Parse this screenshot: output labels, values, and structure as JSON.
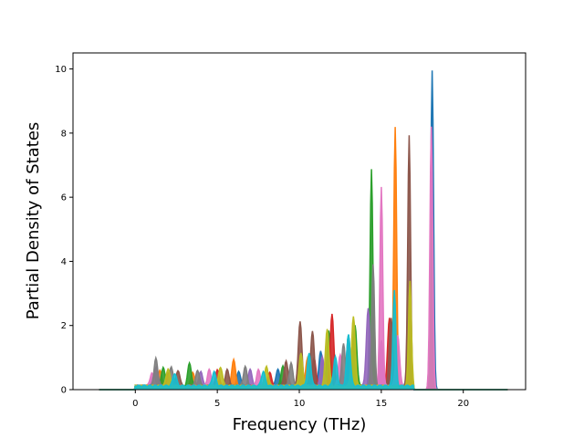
{
  "chart_data": {
    "type": "area",
    "xlabel": "Frequency (THz)",
    "ylabel": "Partial Density of States",
    "xlim": [
      -3.8,
      23.8
    ],
    "ylim": [
      0,
      10.5
    ],
    "xticks": [
      0,
      5,
      10,
      15,
      20
    ],
    "yticks": [
      0,
      2,
      4,
      6,
      8,
      10
    ],
    "grid": false,
    "legend": "none",
    "series": [
      {
        "color": "#1f77b4",
        "peaks": [
          [
            18.1,
            9.95
          ],
          [
            16.7,
            1.5
          ],
          [
            14.4,
            1.1
          ],
          [
            13.0,
            1.6
          ],
          [
            11.3,
            1.1
          ],
          [
            8.7,
            0.5
          ],
          [
            6.3,
            0.45
          ],
          [
            1.1,
            0.35
          ]
        ]
      },
      {
        "color": "#ff7f0e",
        "peaks": [
          [
            15.85,
            8.05
          ],
          [
            14.5,
            3.3
          ],
          [
            13.3,
            1.5
          ],
          [
            10.5,
            0.9
          ],
          [
            6.0,
            0.8
          ],
          [
            3.5,
            0.4
          ],
          [
            1.5,
            0.5
          ]
        ]
      },
      {
        "color": "#2ca02c",
        "peaks": [
          [
            14.4,
            6.75
          ],
          [
            18.05,
            5.35
          ],
          [
            13.4,
            1.9
          ],
          [
            11.8,
            1.7
          ],
          [
            9.0,
            0.6
          ],
          [
            3.3,
            0.7
          ],
          [
            1.7,
            0.6
          ]
        ]
      },
      {
        "color": "#d62728",
        "peaks": [
          [
            12.0,
            2.25
          ],
          [
            15.5,
            2.1
          ],
          [
            10.9,
            0.9
          ],
          [
            8.2,
            0.4
          ],
          [
            5.0,
            0.5
          ],
          [
            2.0,
            0.4
          ]
        ]
      },
      {
        "color": "#9467bd",
        "peaks": [
          [
            14.2,
            2.45
          ],
          [
            15.0,
            1.4
          ],
          [
            11.4,
            0.9
          ],
          [
            7.0,
            0.5
          ],
          [
            4.0,
            0.45
          ],
          [
            1.3,
            0.6
          ]
        ]
      },
      {
        "color": "#8c564b",
        "peaks": [
          [
            16.7,
            7.8
          ],
          [
            15.6,
            2.1
          ],
          [
            10.05,
            2.0
          ],
          [
            10.8,
            1.7
          ],
          [
            9.2,
            0.8
          ],
          [
            5.6,
            0.5
          ],
          [
            2.6,
            0.5
          ]
        ]
      },
      {
        "color": "#e377c2",
        "peaks": [
          [
            18.05,
            8.2
          ],
          [
            15.0,
            6.2
          ],
          [
            16.0,
            1.6
          ],
          [
            12.5,
            1.0
          ],
          [
            7.5,
            0.5
          ],
          [
            4.5,
            0.5
          ],
          [
            1.0,
            0.4
          ]
        ]
      },
      {
        "color": "#7f7f7f",
        "peaks": [
          [
            14.5,
            3.8
          ],
          [
            12.7,
            1.3
          ],
          [
            9.5,
            0.7
          ],
          [
            6.7,
            0.6
          ],
          [
            3.8,
            0.5
          ],
          [
            1.25,
            0.85
          ],
          [
            2.2,
            0.6
          ]
        ]
      },
      {
        "color": "#bcbd22",
        "peaks": [
          [
            16.75,
            3.3
          ],
          [
            13.3,
            2.15
          ],
          [
            10.1,
            1.0
          ],
          [
            11.7,
            1.8
          ],
          [
            8.0,
            0.6
          ],
          [
            5.2,
            0.6
          ],
          [
            2.0,
            0.55
          ]
        ]
      },
      {
        "color": "#17becf",
        "peaks": [
          [
            13.0,
            1.6
          ],
          [
            15.8,
            3.0
          ],
          [
            10.6,
            1.0
          ],
          [
            12.2,
            0.9
          ],
          [
            7.8,
            0.45
          ],
          [
            4.8,
            0.45
          ],
          [
            2.4,
            0.4
          ]
        ]
      }
    ]
  }
}
